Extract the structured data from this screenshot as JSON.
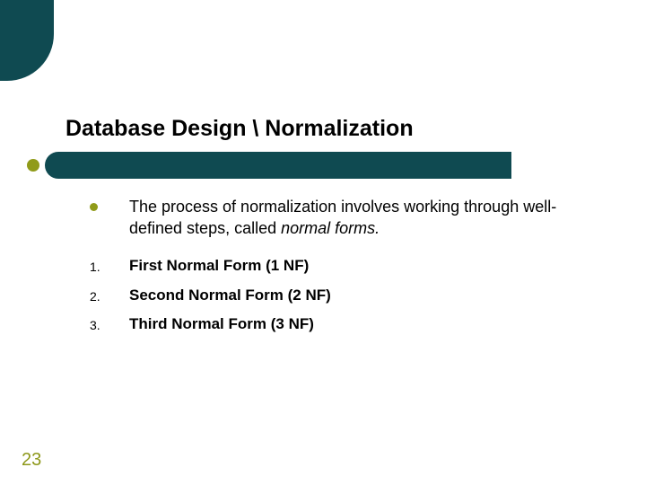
{
  "colors": {
    "accent_teal": "#0f4a51",
    "accent_olive": "#909b19",
    "page_number_color": "#8d981a",
    "background": "#ffffff",
    "text": "#000000"
  },
  "title": "Database Design  \\  Normalization",
  "intro": {
    "prefix": "The process of normalization involves working through well-defined steps, called ",
    "italic_term": "normal forms.",
    "suffix": ""
  },
  "list": {
    "markers": [
      "1.",
      "2.",
      "3."
    ],
    "items": [
      "First Normal Form (1 NF)",
      "Second Normal Form (2 NF)",
      "Third Normal Form (3 NF)"
    ]
  },
  "page_number": "23"
}
